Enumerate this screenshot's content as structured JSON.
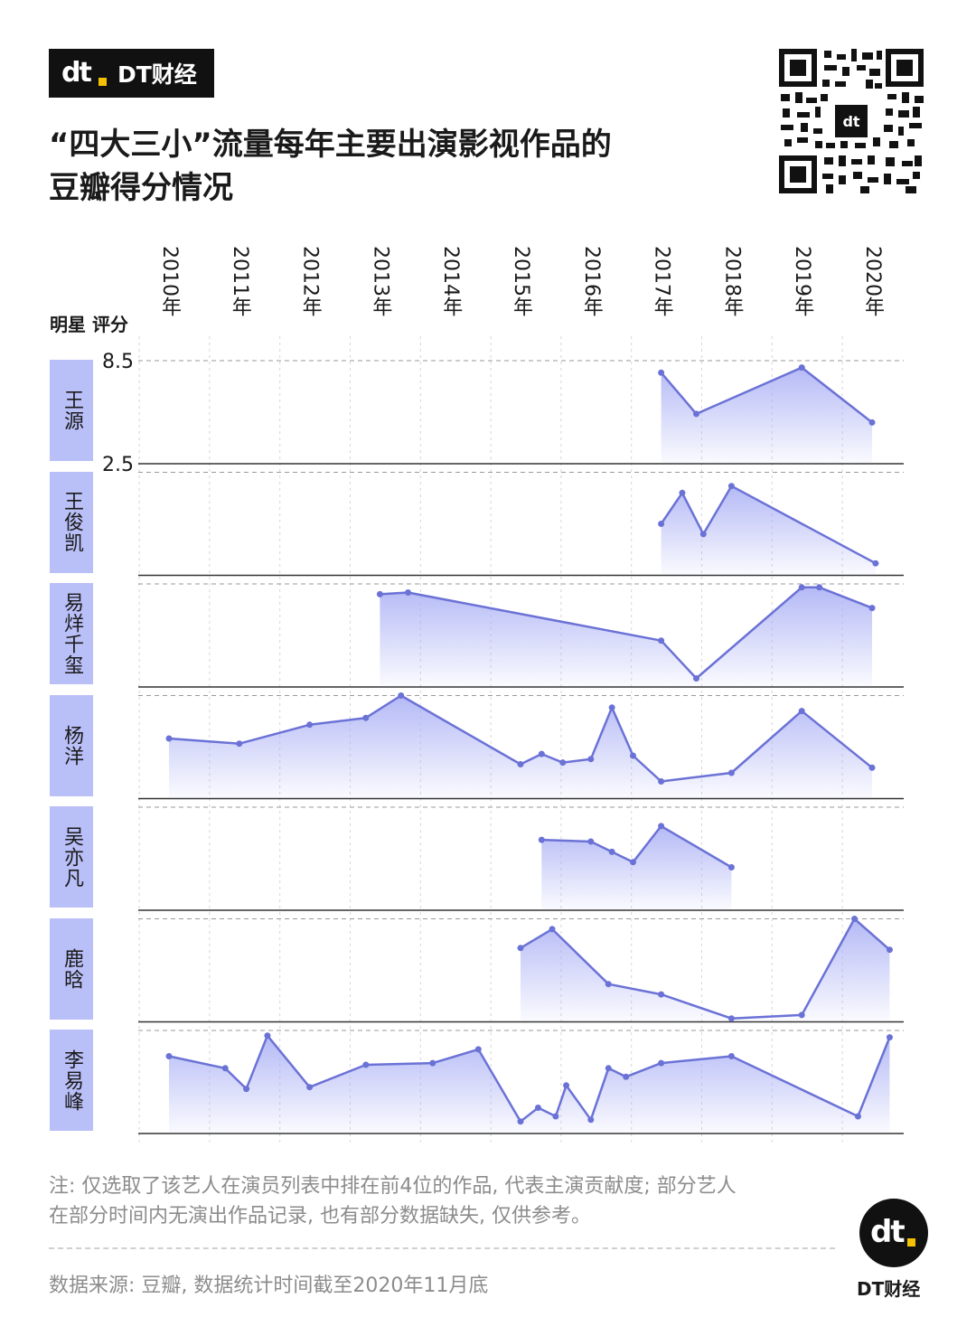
{
  "brand": {
    "logo": "dt",
    "name": "DT财经"
  },
  "title_line1": "“四大三小”流量每年主要出演影视作品的",
  "title_line2": "豆瓣得分情况",
  "column_header": "明星 评分",
  "note_line1": "注: 仅选取了该艺人在演员列表中排在前4位的作品, 代表主演贡献度; 部分艺人",
  "note_line2": "在部分时间内无演出作品记录, 也有部分数据缺失, 仅供参考。",
  "source": "数据来源: 豆瓣, 数据统计时间截至2020年11月底",
  "footer": {
    "logo": "dt",
    "name": "DT财经"
  },
  "icons": [
    "qr-code-icon",
    "dt-logo-icon"
  ],
  "colors": {
    "line": "#6b72d6",
    "fill_top": "#aab0f5",
    "label_bg": "#b9bff7",
    "accent": "#f2c100"
  },
  "chart_data": {
    "type": "area",
    "x_labels": [
      "2010年",
      "2011年",
      "2012年",
      "2013年",
      "2014年",
      "2015年",
      "2016年",
      "2017年",
      "2018年",
      "2019年",
      "2020年"
    ],
    "ylim": [
      2.5,
      8.5
    ],
    "y_tick_labels": [
      "8.5",
      "2.5"
    ],
    "series": [
      {
        "name": "王源",
        "points": [
          [
            2017.0,
            7.8
          ],
          [
            2017.5,
            5.4
          ],
          [
            2019.0,
            8.1
          ],
          [
            2020.0,
            4.9
          ]
        ]
      },
      {
        "name": "王俊凯",
        "points": [
          [
            2017.0,
            5.5
          ],
          [
            2017.3,
            7.3
          ],
          [
            2017.6,
            4.9
          ],
          [
            2018.0,
            7.7
          ],
          [
            2020.05,
            3.2
          ]
        ]
      },
      {
        "name": "易烊千玺",
        "points": [
          [
            2013.0,
            7.9
          ],
          [
            2013.4,
            8.0
          ],
          [
            2017.0,
            5.2
          ],
          [
            2017.5,
            3.0
          ],
          [
            2019.0,
            8.3
          ],
          [
            2019.25,
            8.3
          ],
          [
            2020.0,
            7.1
          ]
        ]
      },
      {
        "name": "杨洋",
        "points": [
          [
            2010.0,
            6.0
          ],
          [
            2011.0,
            5.7
          ],
          [
            2012.0,
            6.8
          ],
          [
            2012.8,
            7.2
          ],
          [
            2013.3,
            8.5
          ],
          [
            2015.0,
            4.5
          ],
          [
            2015.3,
            5.1
          ],
          [
            2015.6,
            4.6
          ],
          [
            2016.0,
            4.8
          ],
          [
            2016.3,
            7.8
          ],
          [
            2016.6,
            5.0
          ],
          [
            2017.0,
            3.5
          ],
          [
            2018.0,
            4.0
          ],
          [
            2019.0,
            7.6
          ],
          [
            2020.0,
            4.3
          ]
        ]
      },
      {
        "name": "吴亦凡",
        "points": [
          [
            2015.3,
            6.6
          ],
          [
            2016.0,
            6.5
          ],
          [
            2016.3,
            5.9
          ],
          [
            2016.6,
            5.3
          ],
          [
            2017.0,
            7.4
          ],
          [
            2018.0,
            5.0
          ]
        ]
      },
      {
        "name": "鹿晗",
        "points": [
          [
            2015.0,
            6.8
          ],
          [
            2015.45,
            7.9
          ],
          [
            2016.25,
            4.7
          ],
          [
            2017.0,
            4.1
          ],
          [
            2018.0,
            2.7
          ],
          [
            2019.0,
            2.9
          ],
          [
            2019.75,
            8.5
          ],
          [
            2020.25,
            6.7
          ]
        ]
      },
      {
        "name": "李易峰",
        "points": [
          [
            2010.0,
            7.0
          ],
          [
            2010.8,
            6.3
          ],
          [
            2011.1,
            5.1
          ],
          [
            2011.4,
            8.2
          ],
          [
            2012.0,
            5.2
          ],
          [
            2012.8,
            6.5
          ],
          [
            2013.75,
            6.6
          ],
          [
            2014.4,
            7.4
          ],
          [
            2015.0,
            3.2
          ],
          [
            2015.25,
            4.0
          ],
          [
            2015.5,
            3.5
          ],
          [
            2015.65,
            5.3
          ],
          [
            2016.0,
            3.3
          ],
          [
            2016.25,
            6.3
          ],
          [
            2016.5,
            5.8
          ],
          [
            2017.0,
            6.6
          ],
          [
            2018.0,
            7.0
          ],
          [
            2019.8,
            3.5
          ],
          [
            2020.25,
            8.1
          ]
        ]
      }
    ]
  }
}
